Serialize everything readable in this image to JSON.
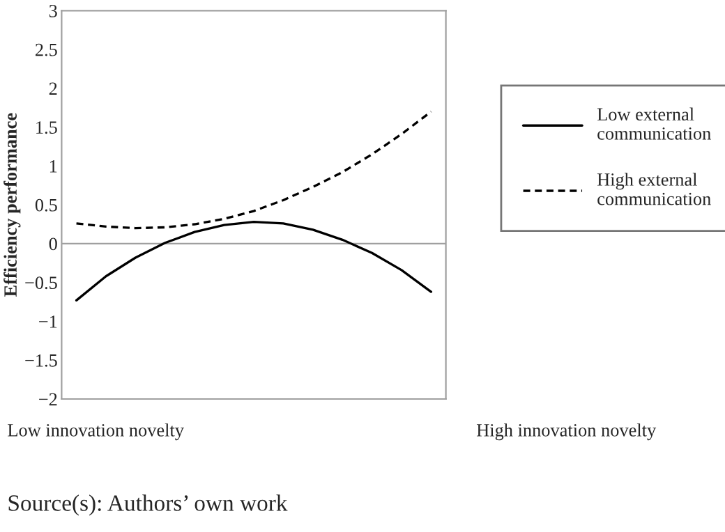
{
  "chart_data": {
    "type": "line",
    "ylabel": "Efficiency performance",
    "categories": [
      null,
      null,
      null,
      null,
      null,
      null,
      null,
      null,
      null,
      null,
      null,
      null,
      null
    ],
    "series": [
      {
        "name": "Low external communication",
        "color": "#000000",
        "line_style": "solid",
        "values": [
          -0.73,
          -0.42,
          -0.18,
          0.01,
          0.15,
          0.24,
          0.28,
          0.26,
          0.18,
          0.05,
          -0.12,
          -0.34,
          -0.62
        ]
      },
      {
        "name": "High external communication",
        "color": "#000000",
        "line_style": "dashed",
        "values": [
          0.26,
          0.22,
          0.2,
          0.21,
          0.25,
          0.32,
          0.42,
          0.56,
          0.73,
          0.92,
          1.15,
          1.41,
          1.7
        ]
      }
    ],
    "ylim": [
      -2,
      3
    ],
    "yticks": [
      {
        "value": -2,
        "label": "−2"
      },
      {
        "value": -1.5,
        "label": "−1.5"
      },
      {
        "value": -1,
        "label": "−1"
      },
      {
        "value": -0.5,
        "label": "−0.5"
      },
      0,
      0.5,
      1,
      1.5,
      2,
      2.5,
      3
    ],
    "ref_lines": [
      {
        "axis": "y",
        "value": 0,
        "color": "#a0a0a0"
      }
    ],
    "grid": false,
    "legend": "right",
    "marker": "none",
    "annotations": [
      "Low innovation novelty",
      "High innovation novelty",
      "Source(s): Authors’ own work"
    ]
  }
}
